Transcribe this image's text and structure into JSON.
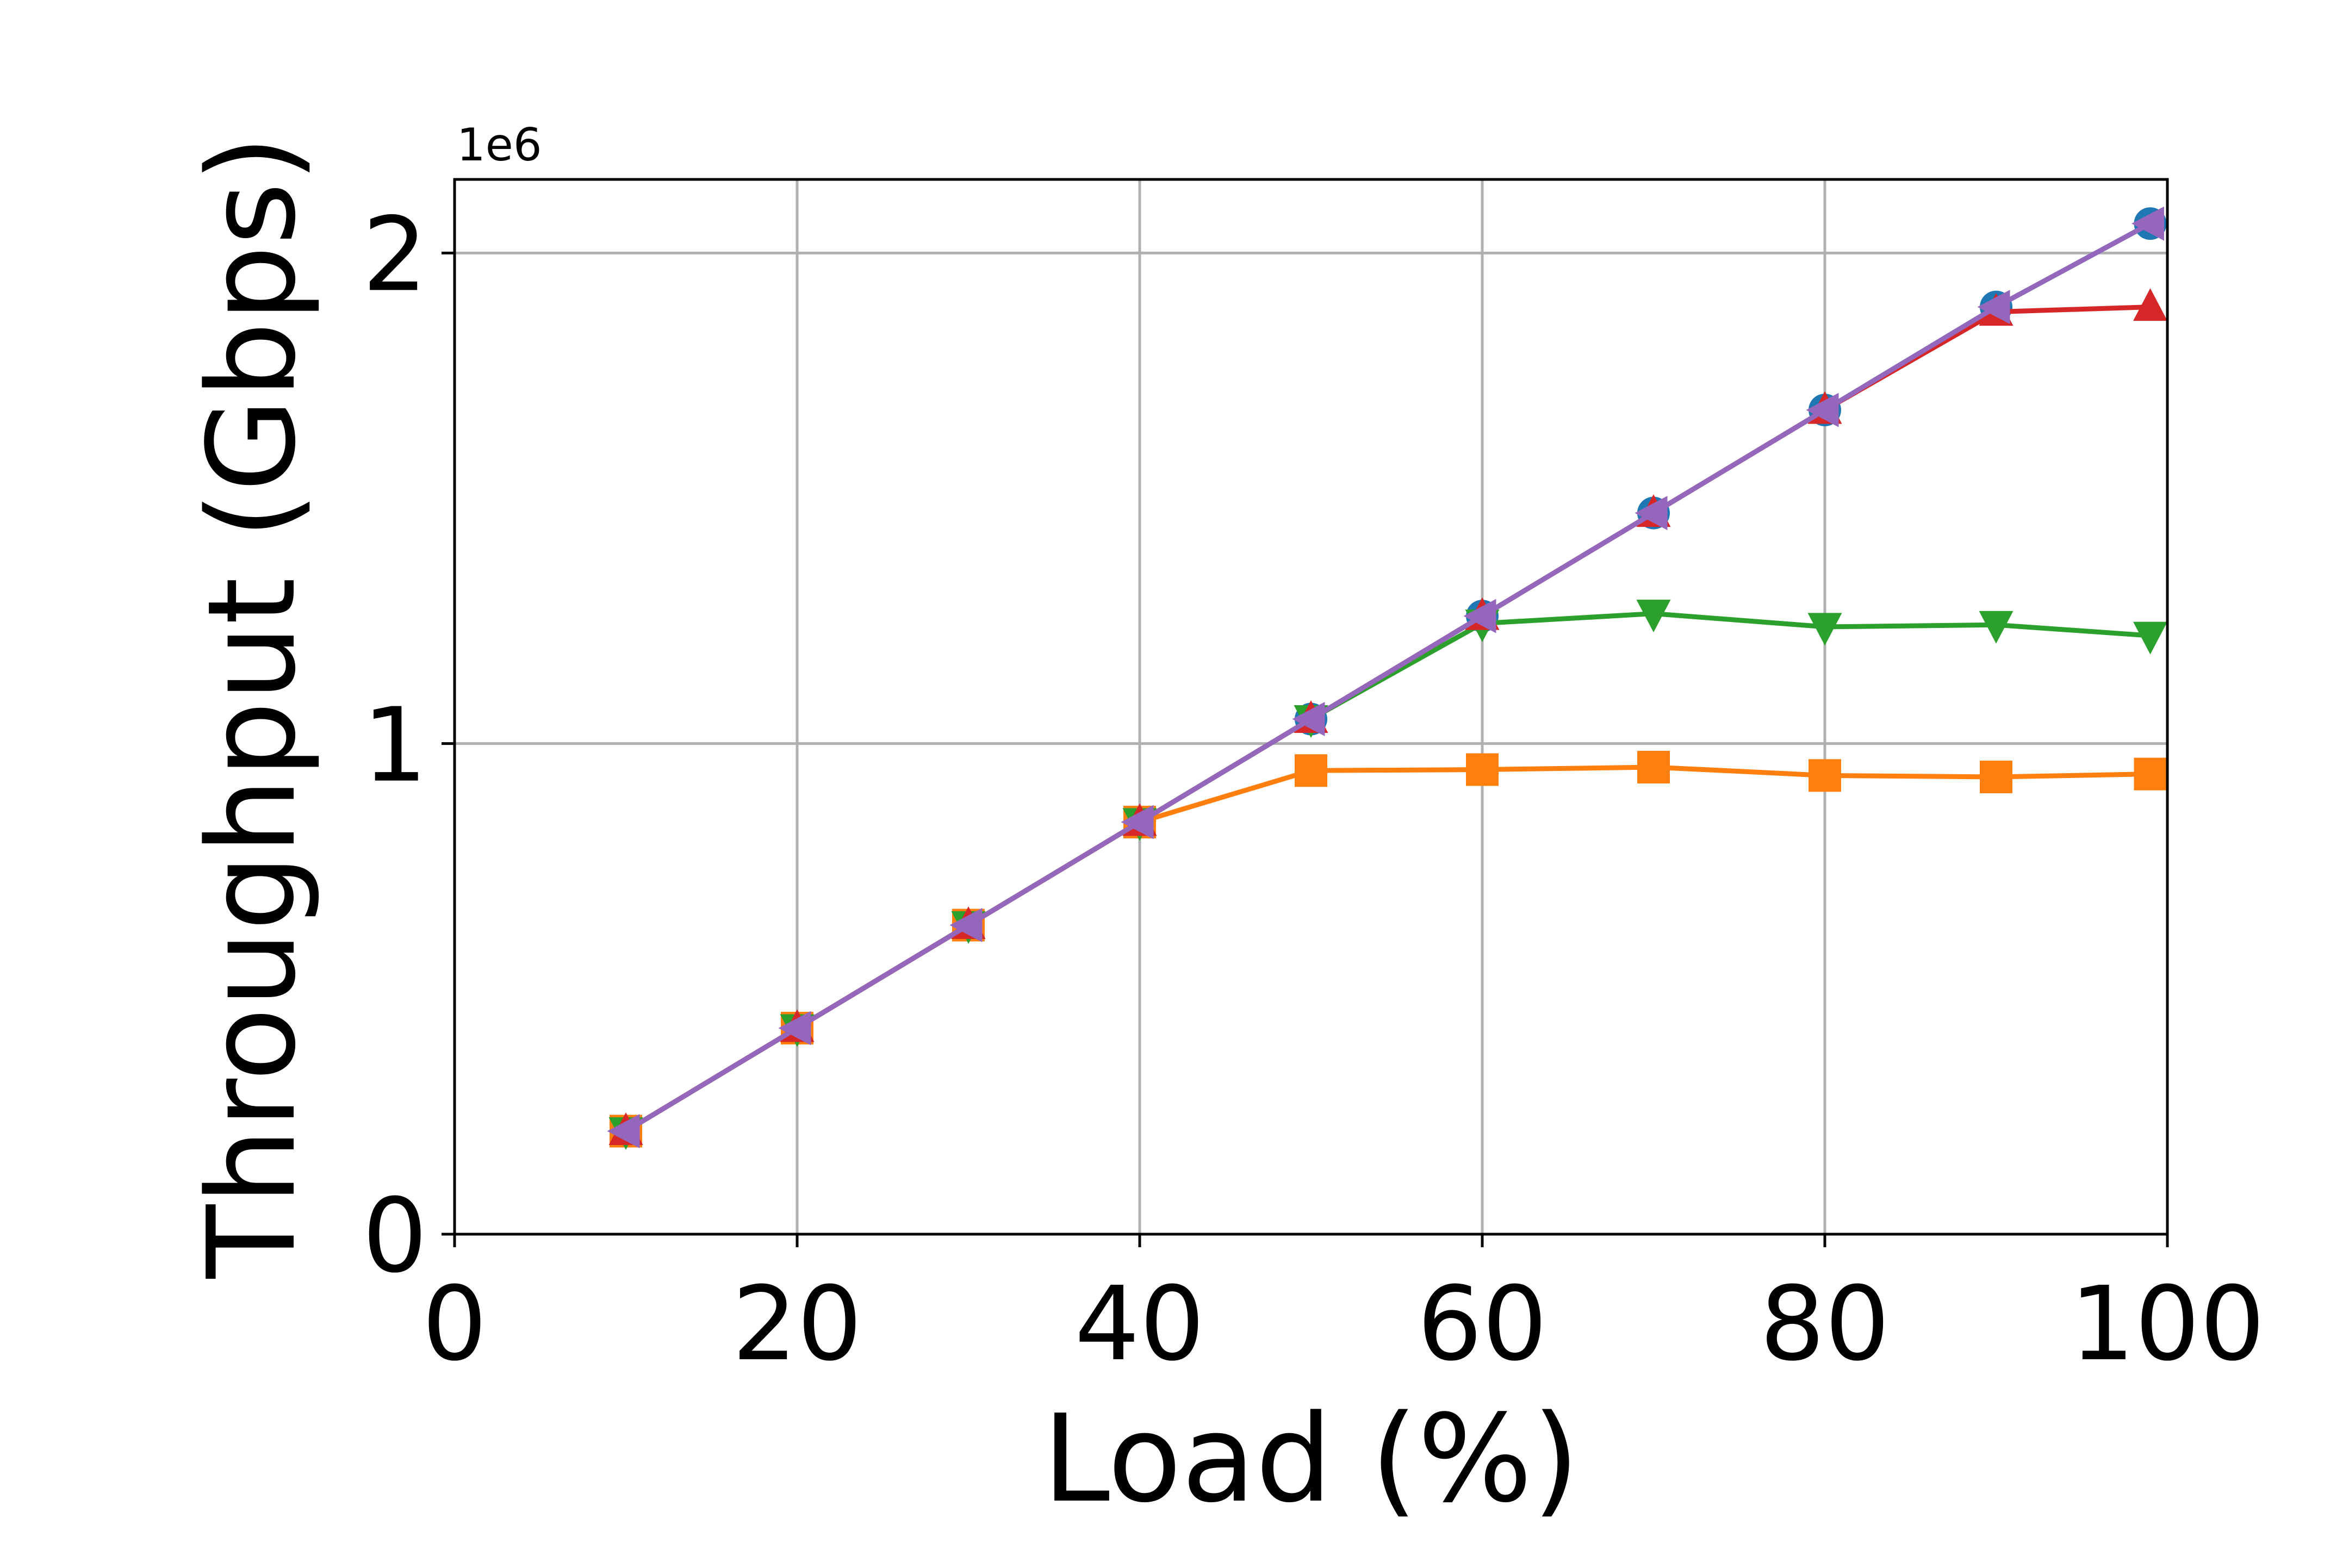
{
  "chart_data": {
    "type": "line",
    "title": "",
    "xlabel": "Load (%)",
    "ylabel": "Throughput (Gbps)",
    "y_offset_label": "1e6",
    "xlim": [
      0,
      100
    ],
    "ylim": [
      0,
      2.15
    ],
    "x_ticks": [
      0,
      20,
      40,
      60,
      80,
      100
    ],
    "x_tick_labels": [
      "0",
      "20",
      "40",
      "60",
      "80",
      "100"
    ],
    "y_ticks": [
      0,
      1,
      2
    ],
    "y_tick_labels": [
      "0",
      "1",
      "2"
    ],
    "grid": true,
    "legend": null,
    "x": [
      10,
      20,
      30,
      40,
      50,
      60,
      70,
      80,
      90,
      99
    ],
    "series": [
      {
        "color": "#1f77b4",
        "marker": "circle",
        "values": [
          0.21,
          0.42,
          0.63,
          0.84,
          1.05,
          1.26,
          1.47,
          1.68,
          1.89,
          2.06
        ]
      },
      {
        "color": "#ff7f0e",
        "marker": "square",
        "values": [
          0.21,
          0.42,
          0.63,
          0.84,
          0.945,
          0.947,
          0.952,
          0.935,
          0.932,
          0.938
        ]
      },
      {
        "color": "#2ca02c",
        "marker": "triangle-down",
        "values": [
          0.21,
          0.42,
          0.63,
          0.84,
          1.05,
          1.245,
          1.265,
          1.238,
          1.242,
          1.22
        ]
      },
      {
        "color": "#d62728",
        "marker": "triangle-up",
        "values": [
          0.21,
          0.42,
          0.63,
          0.84,
          1.05,
          1.26,
          1.47,
          1.68,
          1.88,
          1.89
        ]
      },
      {
        "color": "#9467bd",
        "marker": "triangle-left",
        "values": [
          0.21,
          0.42,
          0.63,
          0.84,
          1.05,
          1.26,
          1.47,
          1.68,
          1.89,
          2.06
        ]
      }
    ]
  }
}
